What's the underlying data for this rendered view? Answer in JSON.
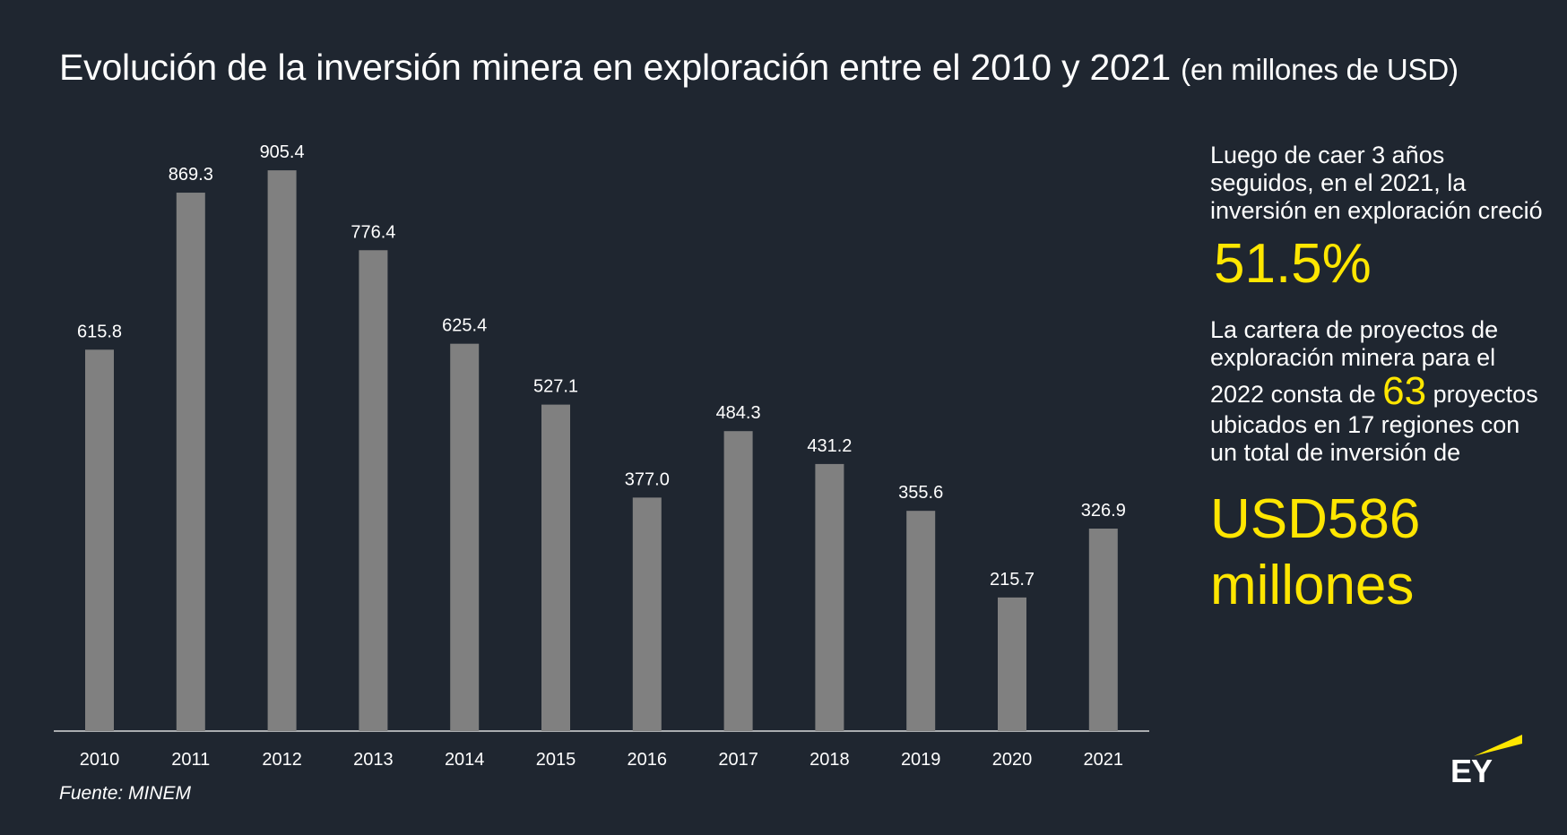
{
  "title": {
    "main": "Evolución de la inversión minera en exploración entre el 2010 y 2021",
    "unit": "(en millones de USD)"
  },
  "source": "Fuente: MINEM",
  "side": {
    "text1": "Luego de caer 3 años seguidos, en el 2021, la inversión en exploración creció",
    "big1": "51.5%",
    "text2": "La cartera de proyectos de exploración minera para el 2022 consta de",
    "num63": "63",
    "text3": "proyectos ubicados en 17 regiones con un total de inversión de",
    "big2": "USD586 millones"
  },
  "logo": "EY",
  "colors": {
    "background": "#1f2630",
    "bar": "#808080",
    "accent": "#ffe600",
    "text": "#ffffff"
  },
  "chart_data": {
    "type": "bar",
    "title": "Evolución de la inversión minera en exploración entre el 2010 y 2021 (en millones de USD)",
    "categories": [
      "2010",
      "2011",
      "2012",
      "2013",
      "2014",
      "2015",
      "2016",
      "2017",
      "2018",
      "2019",
      "2020",
      "2021"
    ],
    "values": [
      615.8,
      869.3,
      905.4,
      776.4,
      625.4,
      527.1,
      377.0,
      484.3,
      431.2,
      355.6,
      215.7,
      326.9
    ],
    "labels": [
      "615.8",
      "869.3",
      "905.4",
      "776.4",
      "625.4",
      "527.1",
      "377.0",
      "484.3",
      "431.2",
      "355.6",
      "215.7",
      "326.9"
    ],
    "xlabel": "",
    "ylabel": "",
    "grid": false,
    "legend": "none"
  }
}
